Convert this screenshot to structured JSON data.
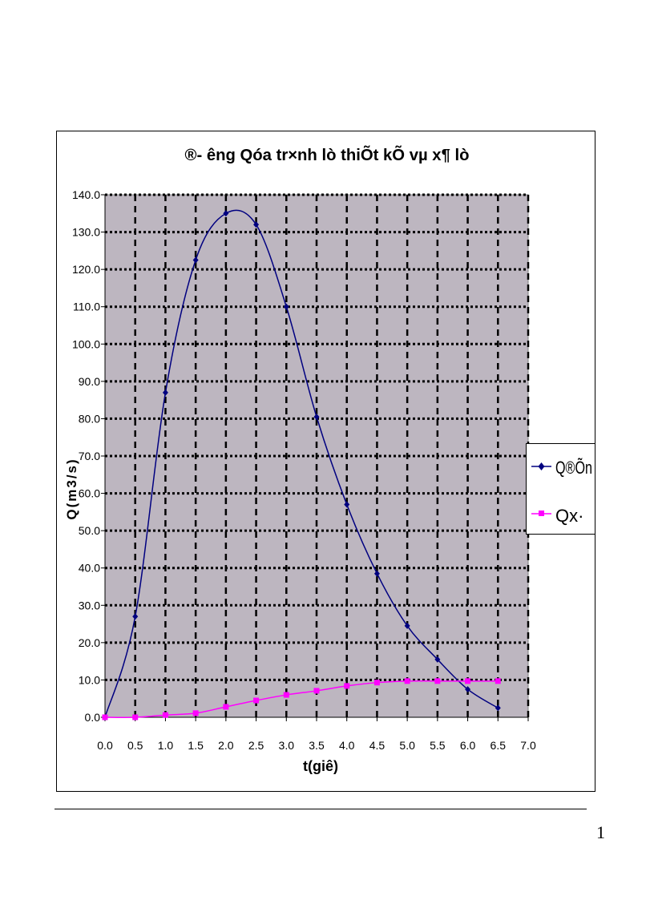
{
  "chart_data": {
    "type": "line",
    "title": "®- êng Qóa tr×nh lò thiÕt kÕ vµ x¶ lò",
    "xlabel": "t(giê)",
    "ylabel": "Q(m3/s)",
    "xlim": [
      0,
      7.0
    ],
    "ylim": [
      0,
      140.0
    ],
    "xticks": [
      "0.0",
      "0.5",
      "1.0",
      "1.5",
      "2.0",
      "2.5",
      "3.0",
      "3.5",
      "4.0",
      "4.5",
      "5.0",
      "5.5",
      "6.0",
      "6.5",
      "7.0"
    ],
    "yticks": [
      "0.0",
      "10.0",
      "20.0",
      "30.0",
      "40.0",
      "50.0",
      "60.0",
      "70.0",
      "80.0",
      "90.0",
      "100.0",
      "110.0",
      "120.0",
      "130.0",
      "140.0"
    ],
    "grid": true,
    "legend_position": "right",
    "x": [
      0,
      0.5,
      1.0,
      1.5,
      2.0,
      2.5,
      3.0,
      3.5,
      4.0,
      4.5,
      5.0,
      5.5,
      6.0,
      6.5
    ],
    "series": [
      {
        "name": "Q®Õn",
        "color": "#000080",
        "marker": "diamond",
        "values": [
          0,
          27,
          87,
          122.5,
          135,
          132,
          110,
          80.5,
          57,
          38.5,
          24.5,
          15.5,
          7.5,
          2.5
        ]
      },
      {
        "name": "Qx·",
        "color": "#FF00FF",
        "marker": "square",
        "values": [
          0,
          0,
          0.6,
          1.1,
          2.8,
          4.5,
          6.0,
          7.1,
          8.4,
          9.3,
          9.7,
          9.7,
          9.7,
          9.7
        ]
      }
    ]
  },
  "page": {
    "number": "1"
  }
}
